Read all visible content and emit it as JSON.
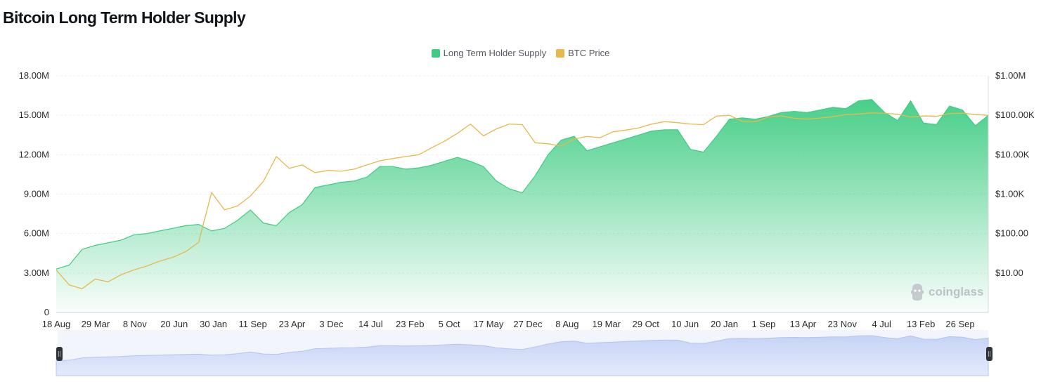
{
  "title": "Bitcoin Long Term Holder Supply",
  "watermark": "coinglass",
  "colors": {
    "supply": "#3ecc82",
    "price": "#e7b84c",
    "navigator": "#c9d6f5"
  },
  "chart_data": {
    "type": "area",
    "title": "Bitcoin Long Term Holder Supply",
    "legend_position": "top-center",
    "grid": true,
    "x_labels": [
      "18 Aug",
      "29 Mar",
      "8 Nov",
      "20 Jun",
      "30 Jan",
      "11 Sep",
      "23 Apr",
      "3 Dec",
      "14 Jul",
      "23 Feb",
      "5 Oct",
      "17 May",
      "27 Dec",
      "8 Aug",
      "19 Mar",
      "29 Oct",
      "10 Jun",
      "20 Jan",
      "1 Sep",
      "13 Apr",
      "23 Nov",
      "4 Jul",
      "13 Feb",
      "26 Sep"
    ],
    "y_left": {
      "ticks": [
        "0",
        "3.00M",
        "6.00M",
        "9.00M",
        "12.00M",
        "15.00M",
        "18.00M"
      ],
      "range": [
        0,
        18000000
      ]
    },
    "y_right": {
      "ticks": [
        "$10.00",
        "$100.00",
        "$1.00K",
        "$10.00K",
        "$100.00K",
        "$1.00M"
      ],
      "scale": "log",
      "range": [
        1,
        1000000
      ]
    },
    "series": [
      {
        "name": "Long Term Holder Supply",
        "axis": "left",
        "values": [
          3300000,
          3600000,
          4800000,
          5100000,
          5300000,
          5500000,
          5900000,
          6000000,
          6200000,
          6400000,
          6600000,
          6700000,
          6200000,
          6400000,
          7000000,
          7800000,
          6800000,
          6600000,
          7600000,
          8200000,
          9500000,
          9700000,
          9900000,
          10000000,
          10300000,
          11100000,
          11100000,
          10900000,
          11000000,
          11200000,
          11500000,
          11800000,
          11500000,
          11100000,
          10000000,
          9400000,
          9100000,
          10400000,
          12000000,
          13100000,
          13400000,
          12300000,
          12600000,
          12900000,
          13200000,
          13500000,
          13800000,
          13900000,
          13900000,
          12400000,
          12200000,
          13400000,
          14700000,
          14800000,
          14700000,
          14900000,
          15200000,
          15300000,
          15200000,
          15400000,
          15600000,
          15500000,
          16100000,
          16200000,
          15200000,
          14600000,
          16100000,
          14400000,
          14300000,
          15700000,
          15400000,
          14200000,
          15000000
        ]
      },
      {
        "name": "BTC Price",
        "axis": "right",
        "values": [
          12,
          5,
          4,
          7,
          6,
          9,
          12,
          15,
          20,
          25,
          35,
          60,
          1100,
          400,
          500,
          900,
          2100,
          9000,
          4500,
          5500,
          3500,
          4000,
          3800,
          4300,
          5500,
          7000,
          8000,
          9000,
          10000,
          15000,
          22000,
          35000,
          60000,
          30000,
          45000,
          60000,
          58000,
          20000,
          19000,
          16500,
          25000,
          29000,
          27000,
          38000,
          42000,
          48000,
          60000,
          69000,
          65000,
          60000,
          58000,
          95000,
          100000,
          70000,
          68000,
          90000,
          96000,
          84000,
          80000,
          85000,
          92000,
          103000,
          108000,
          115000,
          112000,
          106000,
          90000,
          96000,
          94000,
          110000,
          113000,
          104000,
          100000
        ]
      }
    ]
  }
}
